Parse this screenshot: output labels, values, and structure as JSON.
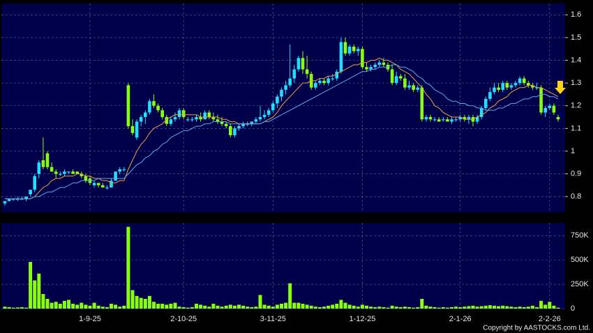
{
  "chart_data": {
    "type": "candlestick",
    "categories": [
      null,
      null,
      null,
      null,
      null,
      null,
      null,
      null,
      null,
      null,
      null,
      null,
      null,
      null,
      null,
      null,
      null,
      null,
      null,
      null,
      "1-9-25",
      null,
      null,
      null,
      null,
      null,
      null,
      null,
      null,
      null,
      null,
      null,
      null,
      null,
      null,
      null,
      null,
      null,
      null,
      null,
      null,
      null,
      "2-10-25",
      null,
      null,
      null,
      null,
      null,
      null,
      null,
      null,
      null,
      null,
      null,
      null,
      null,
      null,
      null,
      null,
      null,
      null,
      null,
      null,
      "3-11-25",
      null,
      null,
      null,
      null,
      null,
      null,
      null,
      null,
      null,
      null,
      null,
      null,
      null,
      null,
      null,
      null,
      null,
      null,
      null,
      null,
      "1-12-25",
      null,
      null,
      null,
      null,
      null,
      null,
      null,
      null,
      null,
      null,
      null,
      null,
      null,
      null,
      null,
      null,
      null,
      null,
      null,
      null,
      null,
      null,
      "2-1-26",
      null,
      null,
      null,
      null,
      null,
      null,
      null,
      null,
      null,
      null,
      null,
      null,
      null,
      null,
      null,
      null,
      null,
      null,
      null,
      null,
      "2-2-26",
      null,
      null
    ],
    "open": [
      0.77,
      0.78,
      0.79,
      0.79,
      0.79,
      0.79,
      0.81,
      0.83,
      0.9,
      0.96,
      0.99,
      0.93,
      0.91,
      0.9,
      0.9,
      0.91,
      0.91,
      0.91,
      0.9,
      0.89,
      0.88,
      0.85,
      0.86,
      0.85,
      0.84,
      0.84,
      0.87,
      0.91,
      0.92,
      1.29,
      1.11,
      1.06,
      1.13,
      1.15,
      1.17,
      1.22,
      1.2,
      1.18,
      1.15,
      1.12,
      1.14,
      1.15,
      1.18,
      1.14,
      1.14,
      1.14,
      1.15,
      1.14,
      1.17,
      1.15,
      1.14,
      1.13,
      1.12,
      1.11,
      1.07,
      1.1,
      1.11,
      1.12,
      1.12,
      1.13,
      1.14,
      1.15,
      1.16,
      1.18,
      1.21,
      1.24,
      1.27,
      1.29,
      1.32,
      1.36,
      1.41,
      1.36,
      1.34,
      1.28,
      1.3,
      1.31,
      1.3,
      1.32,
      1.32,
      1.35,
      1.48,
      1.43,
      1.46,
      1.44,
      1.45,
      1.37,
      1.36,
      1.37,
      1.38,
      1.39,
      1.38,
      1.36,
      1.3,
      1.33,
      1.32,
      1.28,
      1.29,
      1.27,
      1.28,
      1.14,
      1.15,
      1.14,
      1.14,
      1.14,
      1.14,
      1.13,
      1.14,
      1.14,
      1.15,
      1.14,
      1.15,
      1.13,
      1.15,
      1.19,
      1.23,
      1.26,
      1.28,
      1.27,
      1.3,
      1.28,
      1.29,
      1.3,
      1.32,
      1.3,
      1.29,
      1.28,
      1.28,
      1.17,
      1.19,
      1.2,
      1.15
    ],
    "high": [
      0.78,
      0.79,
      0.79,
      0.8,
      0.8,
      0.8,
      0.83,
      0.9,
      0.96,
      1.06,
      1.0,
      0.95,
      0.92,
      0.91,
      0.92,
      0.91,
      0.92,
      0.91,
      0.91,
      0.9,
      0.89,
      0.87,
      0.86,
      0.86,
      0.85,
      0.88,
      0.91,
      0.93,
      0.93,
      1.3,
      1.14,
      1.14,
      1.16,
      1.18,
      1.23,
      1.25,
      1.21,
      1.19,
      1.16,
      1.15,
      1.17,
      1.19,
      1.19,
      1.15,
      1.15,
      1.16,
      1.17,
      1.18,
      1.18,
      1.17,
      1.16,
      1.15,
      1.13,
      1.12,
      1.11,
      1.12,
      1.13,
      1.13,
      1.13,
      1.15,
      1.2,
      1.18,
      1.19,
      1.22,
      1.25,
      1.28,
      1.31,
      1.47,
      1.38,
      1.42,
      1.44,
      1.42,
      1.35,
      1.31,
      1.32,
      1.32,
      1.33,
      1.34,
      1.36,
      1.5,
      1.5,
      1.47,
      1.47,
      1.46,
      1.46,
      1.39,
      1.38,
      1.39,
      1.4,
      1.41,
      1.39,
      1.38,
      1.35,
      1.34,
      1.34,
      1.31,
      1.3,
      1.29,
      1.29,
      1.16,
      1.16,
      1.15,
      1.15,
      1.15,
      1.15,
      1.15,
      1.15,
      1.16,
      1.16,
      1.16,
      1.16,
      1.16,
      1.2,
      1.24,
      1.28,
      1.3,
      1.3,
      1.31,
      1.31,
      1.3,
      1.31,
      1.33,
      1.33,
      1.31,
      1.3,
      1.3,
      1.29,
      1.2,
      1.21,
      1.21,
      1.16
    ],
    "low": [
      0.76,
      0.78,
      0.78,
      0.78,
      0.79,
      0.78,
      0.8,
      0.82,
      0.88,
      0.92,
      0.92,
      0.91,
      0.88,
      0.89,
      0.89,
      0.9,
      0.9,
      0.9,
      0.88,
      0.86,
      0.85,
      0.84,
      0.84,
      0.84,
      0.83,
      0.84,
      0.87,
      0.9,
      0.91,
      1.1,
      1.07,
      1.05,
      1.11,
      1.12,
      1.16,
      1.19,
      1.17,
      1.14,
      1.11,
      1.11,
      1.13,
      1.14,
      1.14,
      1.13,
      1.13,
      1.13,
      1.13,
      1.14,
      1.14,
      1.13,
      1.12,
      1.11,
      1.1,
      1.06,
      1.06,
      1.09,
      1.1,
      1.11,
      1.11,
      1.12,
      1.13,
      1.14,
      1.15,
      1.17,
      1.19,
      1.22,
      1.25,
      1.28,
      1.3,
      1.35,
      1.34,
      1.32,
      1.27,
      1.27,
      1.29,
      1.29,
      1.29,
      1.31,
      1.31,
      1.34,
      1.42,
      1.42,
      1.43,
      1.42,
      1.36,
      1.35,
      1.35,
      1.36,
      1.37,
      1.37,
      1.35,
      1.29,
      1.29,
      1.31,
      1.27,
      1.27,
      1.26,
      1.26,
      1.13,
      1.13,
      1.13,
      1.13,
      1.13,
      1.13,
      1.13,
      1.12,
      1.13,
      1.13,
      1.13,
      1.12,
      1.11,
      1.12,
      1.14,
      1.18,
      1.22,
      1.25,
      1.26,
      1.26,
      1.27,
      1.27,
      1.28,
      1.29,
      1.29,
      1.28,
      1.27,
      1.27,
      1.16,
      1.15,
      1.18,
      1.16,
      1.13
    ],
    "close": [
      0.78,
      0.79,
      0.79,
      0.79,
      0.79,
      0.8,
      0.83,
      0.89,
      0.95,
      0.93,
      0.93,
      0.91,
      0.9,
      0.9,
      0.91,
      0.91,
      0.9,
      0.9,
      0.89,
      0.87,
      0.86,
      0.86,
      0.85,
      0.84,
      0.84,
      0.87,
      0.91,
      0.92,
      0.92,
      1.11,
      1.08,
      1.13,
      1.15,
      1.17,
      1.22,
      1.2,
      1.18,
      1.15,
      1.12,
      1.14,
      1.15,
      1.18,
      1.15,
      1.14,
      1.14,
      1.15,
      1.14,
      1.17,
      1.15,
      1.14,
      1.13,
      1.12,
      1.11,
      1.07,
      1.1,
      1.11,
      1.12,
      1.12,
      1.13,
      1.14,
      1.15,
      1.16,
      1.18,
      1.21,
      1.24,
      1.27,
      1.29,
      1.32,
      1.36,
      1.41,
      1.36,
      1.34,
      1.28,
      1.3,
      1.31,
      1.3,
      1.32,
      1.32,
      1.35,
      1.48,
      1.43,
      1.46,
      1.44,
      1.45,
      1.37,
      1.36,
      1.37,
      1.38,
      1.39,
      1.38,
      1.36,
      1.3,
      1.33,
      1.32,
      1.28,
      1.29,
      1.27,
      1.28,
      1.14,
      1.15,
      1.14,
      1.14,
      1.13,
      1.14,
      1.13,
      1.14,
      1.14,
      1.15,
      1.14,
      1.15,
      1.13,
      1.15,
      1.19,
      1.23,
      1.26,
      1.28,
      1.27,
      1.3,
      1.28,
      1.29,
      1.3,
      1.32,
      1.3,
      1.29,
      1.28,
      1.28,
      1.17,
      1.19,
      1.2,
      1.17,
      1.14
    ],
    "up_color": "#22ddff",
    "down_color": "#88ff11",
    "moving_averages": [
      {
        "color": "#f0a040",
        "values": [
          0.79,
          0.79,
          0.79,
          0.79,
          0.79,
          0.79,
          0.79,
          0.8,
          0.82,
          0.84,
          0.85,
          0.87,
          0.88,
          0.88,
          0.89,
          0.89,
          0.89,
          0.9,
          0.9,
          0.89,
          0.89,
          0.88,
          0.88,
          0.87,
          0.87,
          0.86,
          0.86,
          0.87,
          0.87,
          0.92,
          0.96,
          1.0,
          1.03,
          1.05,
          1.08,
          1.1,
          1.11,
          1.12,
          1.14,
          1.15,
          1.16,
          1.16,
          1.16,
          1.16,
          1.16,
          1.16,
          1.15,
          1.15,
          1.15,
          1.15,
          1.15,
          1.14,
          1.14,
          1.13,
          1.13,
          1.12,
          1.12,
          1.12,
          1.12,
          1.12,
          1.12,
          1.13,
          1.14,
          1.15,
          1.17,
          1.2,
          1.22,
          1.24,
          1.26,
          1.28,
          1.3,
          1.3,
          1.31,
          1.31,
          1.32,
          1.32,
          1.33,
          1.33,
          1.34,
          1.35,
          1.36,
          1.37,
          1.38,
          1.38,
          1.39,
          1.39,
          1.4,
          1.4,
          1.41,
          1.4,
          1.4,
          1.39,
          1.38,
          1.36,
          1.35,
          1.34,
          1.32,
          1.3,
          1.28,
          1.25,
          1.23,
          1.2,
          1.19,
          1.17,
          1.16,
          1.15,
          1.15,
          1.15,
          1.14,
          1.14,
          1.14,
          1.15,
          1.16,
          1.17,
          1.19,
          1.2,
          1.22,
          1.23,
          1.24,
          1.26,
          1.27,
          1.28,
          1.28,
          1.29,
          1.29,
          1.28,
          1.28,
          1.27,
          1.26,
          1.25,
          1.24
        ]
      },
      {
        "color": "#5aaaf0",
        "values": [
          0.79,
          0.79,
          0.79,
          0.79,
          0.79,
          0.79,
          0.79,
          0.8,
          0.8,
          0.81,
          0.82,
          0.82,
          0.83,
          0.84,
          0.84,
          0.85,
          0.86,
          0.86,
          0.87,
          0.87,
          0.87,
          0.87,
          0.88,
          0.88,
          0.88,
          0.88,
          0.88,
          0.88,
          0.88,
          0.9,
          0.92,
          0.94,
          0.95,
          0.97,
          0.98,
          1.0,
          1.01,
          1.03,
          1.04,
          1.06,
          1.07,
          1.08,
          1.09,
          1.09,
          1.1,
          1.11,
          1.11,
          1.12,
          1.12,
          1.13,
          1.13,
          1.13,
          1.13,
          1.12,
          1.12,
          1.12,
          1.12,
          1.12,
          1.12,
          1.12,
          1.12,
          1.13,
          1.13,
          1.14,
          1.15,
          1.16,
          1.17,
          1.18,
          1.19,
          1.2,
          1.21,
          1.22,
          1.23,
          1.24,
          1.25,
          1.26,
          1.27,
          1.28,
          1.29,
          1.3,
          1.31,
          1.32,
          1.33,
          1.34,
          1.35,
          1.35,
          1.36,
          1.36,
          1.37,
          1.37,
          1.37,
          1.38,
          1.38,
          1.37,
          1.37,
          1.36,
          1.35,
          1.33,
          1.32,
          1.3,
          1.29,
          1.27,
          1.26,
          1.25,
          1.23,
          1.22,
          1.22,
          1.21,
          1.21,
          1.2,
          1.2,
          1.19,
          1.19,
          1.18,
          1.18,
          1.18,
          1.19,
          1.19,
          1.2,
          1.21,
          1.21,
          1.22,
          1.23,
          1.23,
          1.24,
          1.24,
          1.25,
          1.25,
          1.24,
          1.24,
          1.23
        ]
      }
    ],
    "ylim": [
      0.73,
      1.65
    ],
    "yticks": [
      0.8,
      0.9,
      1,
      1.1,
      1.2,
      1.3,
      1.4,
      1.5,
      1.6
    ],
    "grid": true,
    "volume": {
      "color": "#88ff11",
      "ylim": [
        0,
        880000
      ],
      "yticks": [
        0,
        {
          "value": 250000,
          "label": "250K"
        },
        {
          "value": 500000,
          "label": "500K"
        },
        {
          "value": 750000,
          "label": "750K"
        }
      ],
      "values": [
        20000,
        15000,
        10000,
        12000,
        15000,
        10000,
        480000,
        290000,
        360000,
        150000,
        100000,
        60000,
        70000,
        50000,
        80000,
        90000,
        50000,
        40000,
        60000,
        40000,
        30000,
        60000,
        30000,
        20000,
        15000,
        50000,
        40000,
        20000,
        30000,
        840000,
        190000,
        130000,
        110000,
        100000,
        130000,
        70000,
        50000,
        50000,
        40000,
        50000,
        60000,
        20000,
        15000,
        10000,
        15000,
        50000,
        40000,
        30000,
        20000,
        50000,
        30000,
        20000,
        30000,
        40000,
        30000,
        40000,
        30000,
        20000,
        15000,
        20000,
        140000,
        40000,
        30000,
        20000,
        40000,
        50000,
        60000,
        260000,
        60000,
        60000,
        50000,
        40000,
        30000,
        20000,
        15000,
        20000,
        30000,
        40000,
        50000,
        90000,
        60000,
        40000,
        30000,
        20000,
        40000,
        30000,
        20000,
        15000,
        20000,
        15000,
        10000,
        30000,
        20000,
        15000,
        20000,
        15000,
        10000,
        15000,
        100000,
        30000,
        20000,
        15000,
        10000,
        15000,
        10000,
        15000,
        20000,
        15000,
        20000,
        25000,
        30000,
        20000,
        25000,
        30000,
        35000,
        30000,
        25000,
        30000,
        25000,
        20000,
        15000,
        20000,
        15000,
        20000,
        30000,
        15000,
        80000,
        40000,
        70000,
        30000,
        10000
      ]
    },
    "credit": "Copyright by AASTOCKS.com Ltd."
  }
}
